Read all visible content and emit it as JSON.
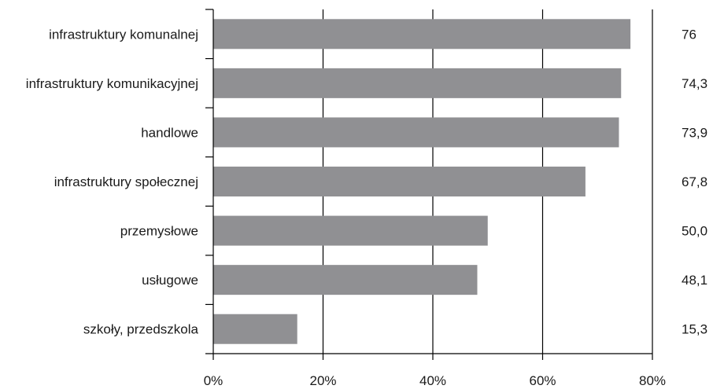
{
  "chart_data": {
    "type": "bar",
    "orientation": "horizontal",
    "categories": [
      "infrastruktury komunalnej",
      "infrastruktury komunikacyjnej",
      "handlowe",
      "infrastruktury społecznej",
      "przemysłowe",
      "usługowe",
      "szkoły, przedszkola"
    ],
    "values": [
      76,
      74.3,
      73.9,
      67.8,
      50.0,
      48.1,
      15.3
    ],
    "value_labels": [
      "76",
      "74,3",
      "73,9",
      "67,8",
      "50,0",
      "48,1",
      "15,3"
    ],
    "title": "",
    "xlabel": "",
    "ylabel": "",
    "xlim": [
      0,
      80
    ],
    "x_ticks": [
      0,
      20,
      40,
      60,
      80
    ],
    "x_tick_labels": [
      "0%",
      "20%",
      "40%",
      "60%",
      "80%"
    ],
    "grid": "vertical",
    "legend": "none",
    "bar_color": "#909093",
    "grid_color": "#000000"
  }
}
